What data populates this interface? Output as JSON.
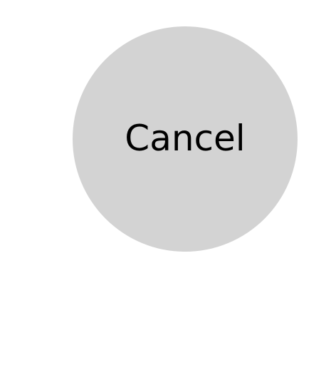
{
  "cancel_button": {
    "label": "Cancel",
    "fill_color": "#d3d3d3",
    "text_color": "#000000"
  },
  "page": {
    "background_color": "#ffffff"
  }
}
